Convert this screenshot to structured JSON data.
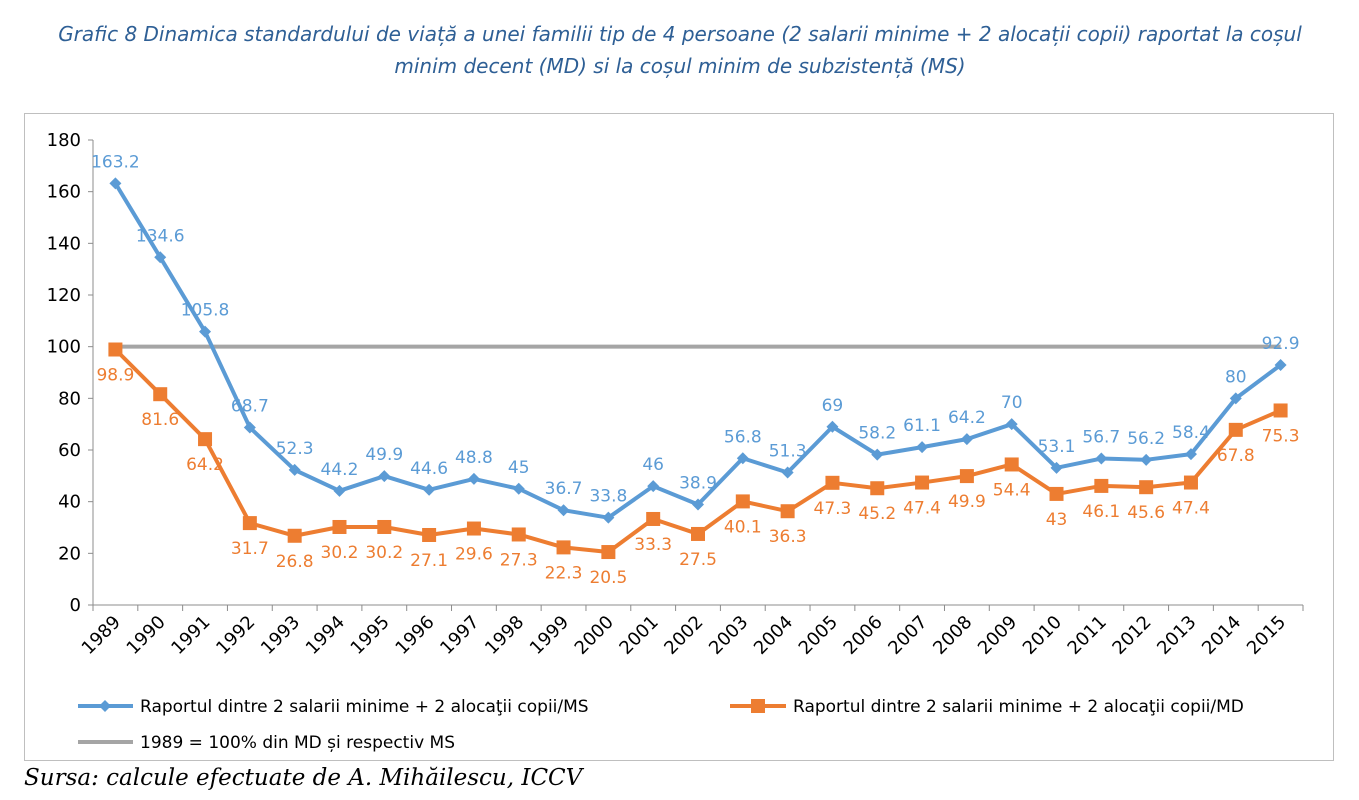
{
  "title_line1": "Grafic 8 Dinamica standardului de viață a unei familii tip de 4 persoane (2 salarii minime + 2 alocații copii) raportat la coșul",
  "title_line2": "minim decent (MD) si la coșul minim de subzistență (MS)",
  "source": "Sursa: calcule efectuate de A. Mihăilescu, ICCV",
  "chart_data": {
    "type": "line",
    "x": [
      "1989",
      "1990",
      "1991",
      "1992",
      "1993",
      "1994",
      "1995",
      "1996",
      "1997",
      "1998",
      "1999",
      "2000",
      "2001",
      "2002",
      "2003",
      "2004",
      "2005",
      "2006",
      "2007",
      "2008",
      "2009",
      "2010",
      "2011",
      "2012",
      "2013",
      "2014",
      "2015"
    ],
    "ylim": [
      0,
      180
    ],
    "yticks": [
      0,
      20,
      40,
      60,
      80,
      100,
      120,
      140,
      160,
      180
    ],
    "grid": false,
    "legend_position": "bottom",
    "series": [
      {
        "name": "Raportul dintre 2 salarii minime + 2 alocaţii copii/MS",
        "color": "#5b9bd5",
        "marker": "diamond",
        "values": [
          163.2,
          134.6,
          105.8,
          68.7,
          52.3,
          44.2,
          49.9,
          44.6,
          48.8,
          45,
          36.7,
          33.8,
          46,
          38.9,
          56.8,
          51.3,
          69,
          58.2,
          61.1,
          64.2,
          70,
          53.1,
          56.7,
          56.2,
          58.4,
          80,
          92.9
        ]
      },
      {
        "name": "Raportul dintre 2 salarii minime + 2 alocaţii copii/MD",
        "color": "#ed7d31",
        "marker": "square",
        "values": [
          98.9,
          81.6,
          64.2,
          31.7,
          26.8,
          30.2,
          30.2,
          27.1,
          29.6,
          27.3,
          22.3,
          20.5,
          33.3,
          27.5,
          40.1,
          36.3,
          47.3,
          45.2,
          47.4,
          49.9,
          54.4,
          43,
          46.1,
          45.6,
          47.4,
          67.8,
          75.3
        ]
      },
      {
        "name": "1989 = 100% din MD și respectiv MS",
        "color": "#a5a5a5",
        "marker": "none",
        "values": [
          100,
          100,
          100,
          100,
          100,
          100,
          100,
          100,
          100,
          100,
          100,
          100,
          100,
          100,
          100,
          100,
          100,
          100,
          100,
          100,
          100,
          100,
          100,
          100,
          100,
          100,
          100
        ]
      }
    ]
  }
}
